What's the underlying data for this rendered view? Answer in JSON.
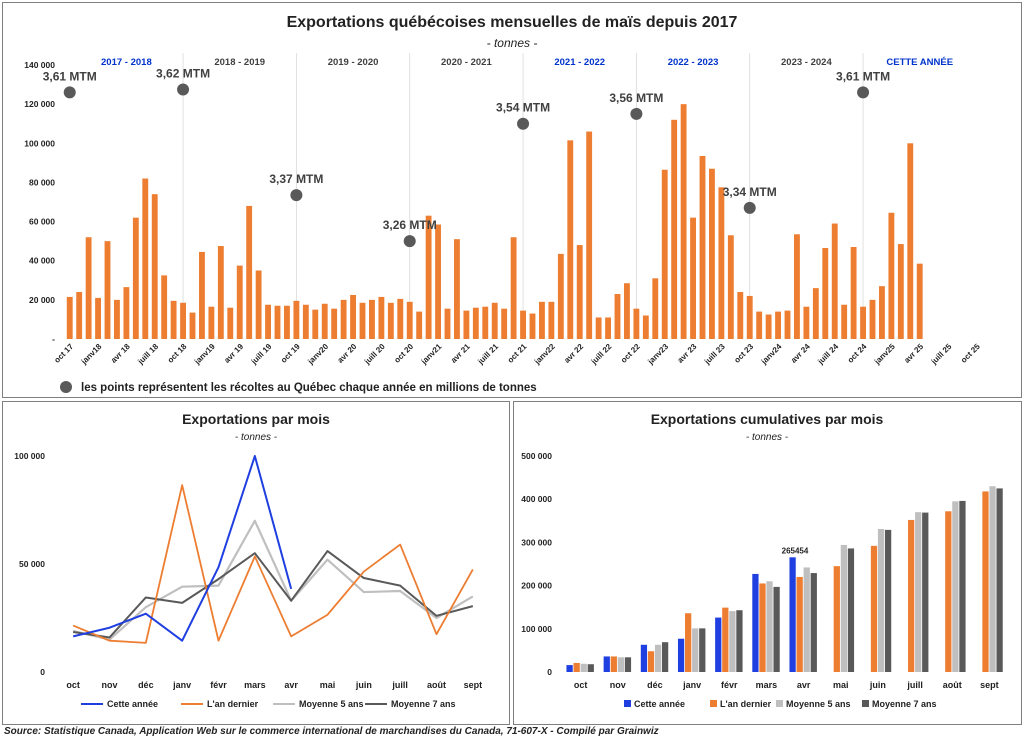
{
  "colors": {
    "bar": "#ed7d31",
    "dot": "#595959",
    "blue_label": "#0033cc",
    "dark_label": "#404040",
    "cette_annee": "#1f3fe0",
    "an_dernier": "#ed7d31",
    "moy5": "#bfbfbf",
    "moy7": "#595959"
  },
  "source": "Source: Statistique Canada, Application Web sur le commerce international de marchandises du Canada, 71-607-X - Compilé par Grainwiz",
  "chart_data": [
    {
      "id": "monthly_since_2017",
      "type": "bar",
      "title": "Exportations québécoises mensuelles de maïs depuis 2017",
      "subtitle": "- tonnes -",
      "ylim": [
        0,
        140000
      ],
      "yticks": [
        0,
        20000,
        40000,
        60000,
        80000,
        100000,
        120000,
        140000
      ],
      "ytick_labels": [
        "-",
        "20 000",
        "40 000",
        "60 000",
        "80 000",
        "100 000",
        "120 000",
        "140 000"
      ],
      "xtick_labels": [
        "oct 17",
        "janv18",
        "avr 18",
        "juill 18",
        "oct 18",
        "janv19",
        "avr 19",
        "juill 19",
        "oct 19",
        "janv20",
        "avr 20",
        "juill 20",
        "oct 20",
        "janv21",
        "avr 21",
        "juill 21",
        "oct 21",
        "janv22",
        "avr 22",
        "juill 22",
        "oct 22",
        "janv23",
        "avr 23",
        "juill 23",
        "oct 23",
        "janv24",
        "avr 24",
        "juill 24",
        "oct 24",
        "janv25",
        "avr 25",
        "juill 25",
        "oct 25"
      ],
      "values": [
        21500,
        24000,
        52000,
        21000,
        50000,
        20000,
        26500,
        62000,
        82000,
        74000,
        32500,
        19500,
        18500,
        13500,
        44500,
        16500,
        47500,
        16000,
        37500,
        68000,
        35000,
        17500,
        17000,
        17000,
        19500,
        17500,
        15000,
        18000,
        15500,
        20000,
        22500,
        18500,
        20000,
        21500,
        18500,
        20500,
        19000,
        14000,
        63000,
        58500,
        15500,
        51000,
        14500,
        16000,
        16500,
        18500,
        15500,
        52000,
        14500,
        13000,
        19000,
        19000,
        43500,
        101500,
        48000,
        106000,
        11000,
        11000,
        23000,
        28500,
        15500,
        12000,
        31000,
        86500,
        112000,
        120000,
        62000,
        93500,
        87000,
        77500,
        53000,
        24000,
        22000,
        14000,
        12500,
        14000,
        14500,
        53500,
        16500,
        26000,
        46500,
        59000,
        17500,
        47000,
        16500,
        20000,
        27000,
        64500,
        48500,
        100000,
        38500
      ],
      "season_labels": [
        {
          "label": "2017 - 2018",
          "highlight": true
        },
        {
          "label": "2018 - 2019",
          "highlight": false
        },
        {
          "label": "2019 - 2020",
          "highlight": false
        },
        {
          "label": "2020 - 2021",
          "highlight": false
        },
        {
          "label": "2021 - 2022",
          "highlight": true
        },
        {
          "label": "2022 - 2023",
          "highlight": true
        },
        {
          "label": "2023 - 2024",
          "highlight": false
        },
        {
          "label": "CETTE ANNÉE",
          "highlight": true
        }
      ],
      "harvest_points": [
        {
          "label": "3,61 MTM",
          "month_index": 0,
          "y": 126000
        },
        {
          "label": "3,62 MTM",
          "month_index": 12,
          "y": 127500
        },
        {
          "label": "3,37 MTM",
          "month_index": 24,
          "y": 73500
        },
        {
          "label": "3,26 MTM",
          "month_index": 36,
          "y": 50000
        },
        {
          "label": "3,54 MTM",
          "month_index": 48,
          "y": 110000
        },
        {
          "label": "3,56 MTM",
          "month_index": 60,
          "y": 115000
        },
        {
          "label": "3,34 MTM",
          "month_index": 72,
          "y": 67000
        },
        {
          "label": "3,61 MTM",
          "month_index": 84,
          "y": 126000
        }
      ],
      "legend": "les points représentent les récoltes au Québec chaque année en millions de tonnes"
    },
    {
      "id": "monthly_lines",
      "type": "line",
      "title": "Exportations  par mois",
      "subtitle": "- tonnes -",
      "categories": [
        "oct",
        "nov",
        "déc",
        "janv",
        "févr",
        "mars",
        "avr",
        "mai",
        "juin",
        "juill",
        "août",
        "sept"
      ],
      "ylim": [
        0,
        100000
      ],
      "yticks": [
        0,
        50000,
        100000
      ],
      "ytick_labels": [
        "0",
        "50 000",
        "100 000"
      ],
      "series": [
        {
          "name": "Cette année",
          "values": [
            16500,
            20500,
            27000,
            14500,
            48500,
            100000,
            38500,
            null,
            null,
            null,
            null,
            null
          ]
        },
        {
          "name": "L'an dernier",
          "values": [
            21500,
            14500,
            13500,
            86500,
            14500,
            53500,
            16500,
            26500,
            46500,
            59000,
            17500,
            47500
          ]
        },
        {
          "name": "Moyenne 5 ans",
          "values": [
            19000,
            15000,
            30000,
            39500,
            40000,
            70000,
            33000,
            52000,
            37000,
            37500,
            25000,
            35000
          ]
        },
        {
          "name": "Moyenne 7 ans",
          "values": [
            18500,
            16000,
            34500,
            32000,
            43000,
            55000,
            33000,
            56000,
            43500,
            40000,
            26000,
            30500
          ]
        }
      ]
    },
    {
      "id": "cumulative_bars",
      "type": "bar",
      "title": "Exportations  cumulatives par mois",
      "subtitle": "- tonnes -",
      "categories": [
        "oct",
        "nov",
        "déc",
        "janv",
        "févr",
        "mars",
        "avr",
        "mai",
        "juin",
        "juill",
        "août",
        "sept"
      ],
      "ylim": [
        0,
        500000
      ],
      "yticks": [
        0,
        100000,
        200000,
        300000,
        400000,
        500000
      ],
      "ytick_labels": [
        "0",
        "100 000",
        "200 000",
        "300 000",
        "400 000",
        "500 000"
      ],
      "data_label": "265454",
      "series": [
        {
          "name": "Cette année",
          "values": [
            16000,
            36000,
            63000,
            77000,
            126000,
            227000,
            265454,
            null,
            null,
            null,
            null,
            null
          ]
        },
        {
          "name": "L'an dernier",
          "values": [
            21000,
            36000,
            48000,
            136000,
            149000,
            205000,
            220000,
            245000,
            292000,
            352000,
            372000,
            418000
          ]
        },
        {
          "name": "Moyenne 5 ans",
          "values": [
            19000,
            34000,
            63000,
            101000,
            141000,
            210000,
            242000,
            294000,
            331000,
            370000,
            395000,
            430000
          ]
        },
        {
          "name": "Moyenne 7 ans",
          "values": [
            18000,
            34000,
            69000,
            101000,
            143000,
            197000,
            229000,
            286000,
            329000,
            369000,
            396000,
            425000
          ]
        }
      ]
    }
  ]
}
